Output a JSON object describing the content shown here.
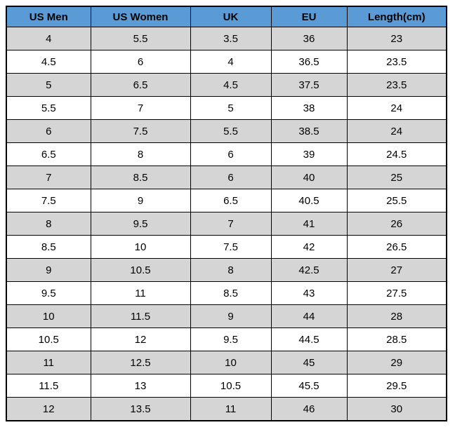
{
  "chart_data": {
    "type": "table",
    "columns": [
      "US Men",
      "US Women",
      "UK",
      "EU",
      "Length(cm)"
    ],
    "rows": [
      [
        "4",
        "5.5",
        "3.5",
        "36",
        "23"
      ],
      [
        "4.5",
        "6",
        "4",
        "36.5",
        "23.5"
      ],
      [
        "5",
        "6.5",
        "4.5",
        "37.5",
        "23.5"
      ],
      [
        "5.5",
        "7",
        "5",
        "38",
        "24"
      ],
      [
        "6",
        "7.5",
        "5.5",
        "38.5",
        "24"
      ],
      [
        "6.5",
        "8",
        "6",
        "39",
        "24.5"
      ],
      [
        "7",
        "8.5",
        "6",
        "40",
        "25"
      ],
      [
        "7.5",
        "9",
        "6.5",
        "40.5",
        "25.5"
      ],
      [
        "8",
        "9.5",
        "7",
        "41",
        "26"
      ],
      [
        "8.5",
        "10",
        "7.5",
        "42",
        "26.5"
      ],
      [
        "9",
        "10.5",
        "8",
        "42.5",
        "27"
      ],
      [
        "9.5",
        "11",
        "8.5",
        "43",
        "27.5"
      ],
      [
        "10",
        "11.5",
        "9",
        "44",
        "28"
      ],
      [
        "10.5",
        "12",
        "9.5",
        "44.5",
        "28.5"
      ],
      [
        "11",
        "12.5",
        "10",
        "45",
        "29"
      ],
      [
        "11.5",
        "13",
        "10.5",
        "45.5",
        "29.5"
      ],
      [
        "12",
        "13.5",
        "11",
        "46",
        "30"
      ]
    ],
    "layout": {
      "legend": "none",
      "grid": "all-cell-borders",
      "header_position": "top"
    },
    "colors": {
      "header_bg": "#5B9BD5",
      "odd_row_bg": "#D5D5D5",
      "even_row_bg": "#FFFFFF",
      "border": "#000000",
      "text": "#000000"
    }
  }
}
